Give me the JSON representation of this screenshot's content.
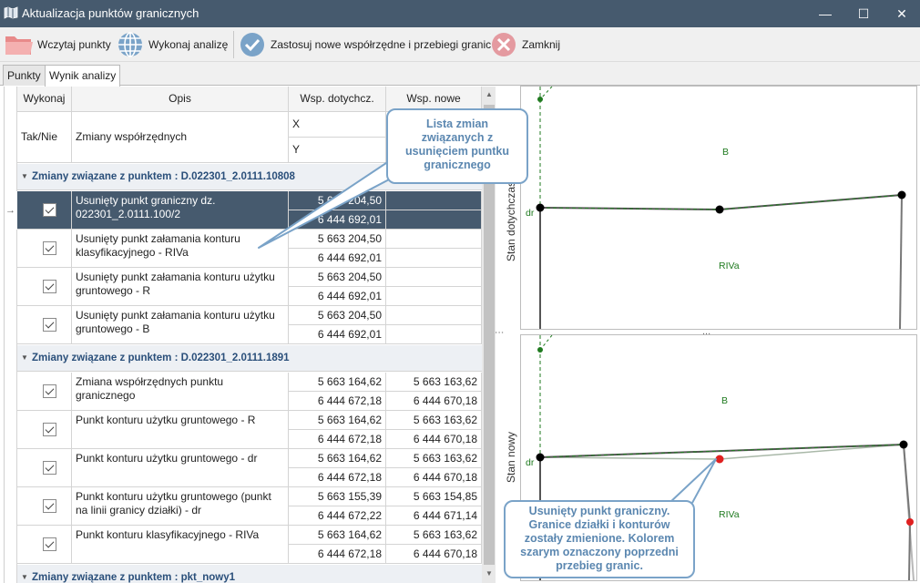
{
  "window": {
    "title": "Aktualizacja punktów granicznych",
    "minimize": "—",
    "maximize": "☐",
    "close": "✕"
  },
  "toolbar": {
    "load_label": "Wczytaj punkty",
    "analyze_label": "Wykonaj analizę",
    "apply_label": "Zastosuj nowe współrzędne i przebiegi granic",
    "close_label": "Zamknij"
  },
  "tabs": [
    {
      "label": "Punkty"
    },
    {
      "label": "Wynik analizy"
    }
  ],
  "grid": {
    "headers": {
      "execute": "Wykonaj",
      "description": "Opis",
      "coord_old": "Wsp. dotychcz.",
      "coord_new": "Wsp. nowe"
    },
    "subheaders": {
      "yes_no": "Tak/Nie",
      "changes": "Zmiany współrzędnych",
      "x": "X",
      "y": "Y"
    },
    "groups": [
      {
        "title": "Zmiany związane z punktem : D.022301_2.0111.10808",
        "rows": [
          {
            "desc": "Usunięty punkt graniczny dz. 022301_2.0111.100/2",
            "x_old": "5 663 204,50",
            "y_old": "6 444 692,01",
            "x_new": "",
            "y_new": ""
          },
          {
            "desc": "Usunięty punkt załamania konturu klasyfikacyjnego - RIVa",
            "x_old": "5 663 204,50",
            "y_old": "6 444 692,01",
            "x_new": "",
            "y_new": ""
          },
          {
            "desc": "Usunięty punkt załamania konturu użytku gruntowego - R",
            "x_old": "5 663 204,50",
            "y_old": "6 444 692,01",
            "x_new": "",
            "y_new": ""
          },
          {
            "desc": "Usunięty punkt załamania konturu użytku gruntowego - B",
            "x_old": "5 663 204,50",
            "y_old": "6 444 692,01",
            "x_new": "",
            "y_new": ""
          }
        ]
      },
      {
        "title": "Zmiany związane z punktem : D.022301_2.0111.1891",
        "rows": [
          {
            "desc": "Zmiana współrzędnych punktu granicznego",
            "x_old": "5 663 164,62",
            "y_old": "6 444 672,18",
            "x_new": "5 663 163,62",
            "y_new": "6 444 670,18"
          },
          {
            "desc": "Punkt konturu użytku gruntowego - R",
            "x_old": "5 663 164,62",
            "y_old": "6 444 672,18",
            "x_new": "5 663 163,62",
            "y_new": "6 444 670,18"
          },
          {
            "desc": "Punkt konturu użytku gruntowego - dr",
            "x_old": "5 663 164,62",
            "y_old": "6 444 672,18",
            "x_new": "5 663 163,62",
            "y_new": "6 444 670,18"
          },
          {
            "desc": "Punkt konturu użytku gruntowego (punkt na linii granicy działki) - dr",
            "x_old": "5 663 155,39",
            "y_old": "6 444 672,22",
            "x_new": "5 663 154,85",
            "y_new": "6 444 671,14"
          },
          {
            "desc": "Punkt konturu klasyfikacyjnego - RIVa",
            "x_old": "5 663 164,62",
            "y_old": "6 444 672,18",
            "x_new": "5 663 163,62",
            "y_new": "6 444 670,18"
          }
        ]
      },
      {
        "title": "Zmiany związane z punktem : pkt_nowy1",
        "rows": []
      }
    ],
    "row_pointer": "→"
  },
  "callouts": {
    "list": "Lista zmian związanych z usunięciem puntku granicznego",
    "point": "Usunięty punkt graniczny. Granice działki i konturów zostały zmienione. Kolorem szarym oznaczony poprzedni przebieg granic."
  },
  "plots": {
    "top": {
      "label": "Stan dotychczasowy",
      "labels": {
        "B": "B",
        "RIVa": "RIVa",
        "dr": "dr"
      }
    },
    "bottom": {
      "label": "Stan nowy",
      "labels": {
        "B": "B",
        "RIVa": "RIVa",
        "dr": "dr"
      }
    },
    "splitter": "..."
  },
  "colors": {
    "accent": "#465a6e",
    "callout": "#7aa3c8",
    "removed_point": "#e02020",
    "contour": "#1f7a1f"
  }
}
